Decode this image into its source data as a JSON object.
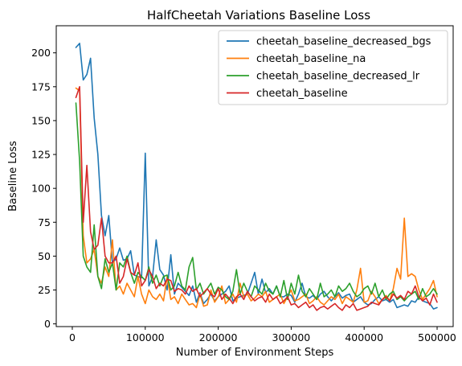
{
  "chart_data": {
    "type": "line",
    "title": "HalfCheetah Variations Baseline Loss",
    "xlabel": "Number of Environment Steps",
    "ylabel": "Baseline Loss",
    "xlim": [
      -22000,
      522000
    ],
    "ylim": [
      -2,
      220
    ],
    "xticks": [
      0,
      100000,
      200000,
      300000,
      400000,
      500000
    ],
    "yticks": [
      0,
      25,
      50,
      75,
      100,
      125,
      150,
      175,
      200
    ],
    "grid": false,
    "legend_position": "upper-right",
    "series": [
      {
        "name": "cheetah_baseline_decreased_bgs",
        "color": "#1f77b4",
        "x": [
          5000,
          10000,
          15000,
          20000,
          25000,
          30000,
          35000,
          40000,
          45000,
          50000,
          55000,
          60000,
          65000,
          70000,
          75000,
          80000,
          85000,
          90000,
          95000,
          100000,
          105000,
          110000,
          115000,
          120000,
          125000,
          130000,
          135000,
          140000,
          145000,
          150000,
          155000,
          160000,
          165000,
          170000,
          175000,
          180000,
          185000,
          190000,
          195000,
          200000,
          205000,
          210000,
          215000,
          220000,
          225000,
          230000,
          235000,
          240000,
          245000,
          250000,
          255000,
          260000,
          265000,
          270000,
          275000,
          280000,
          285000,
          290000,
          295000,
          300000,
          305000,
          310000,
          315000,
          320000,
          325000,
          330000,
          335000,
          340000,
          345000,
          350000,
          355000,
          360000,
          365000,
          370000,
          375000,
          380000,
          385000,
          390000,
          395000,
          400000,
          405000,
          410000,
          415000,
          420000,
          425000,
          430000,
          435000,
          440000,
          445000,
          450000,
          455000,
          460000,
          465000,
          470000,
          475000,
          480000,
          485000,
          490000,
          495000,
          500000
        ],
        "values": [
          204,
          207,
          180,
          184,
          196,
          152,
          125,
          80,
          65,
          80,
          45,
          48,
          56,
          47,
          48,
          54,
          36,
          35,
          34,
          126,
          28,
          35,
          62,
          40,
          36,
          25,
          51,
          22,
          30,
          27,
          24,
          21,
          28,
          16,
          23,
          15,
          18,
          22,
          17,
          20,
          22,
          24,
          28,
          17,
          19,
          20,
          21,
          22,
          30,
          38,
          22,
          33,
          23,
          26,
          22,
          28,
          20,
          20,
          22,
          21,
          16,
          22,
          30,
          20,
          19,
          21,
          18,
          22,
          24,
          20,
          17,
          20,
          23,
          19,
          21,
          22,
          16,
          18,
          20,
          16,
          14,
          15,
          18,
          20,
          17,
          18,
          16,
          18,
          12,
          13,
          14,
          13,
          17,
          16,
          20,
          17,
          16,
          15,
          11,
          12
        ]
      },
      {
        "name": "cheetah_baseline_na",
        "color": "#ff7f0e",
        "x": [
          5000,
          10000,
          15000,
          20000,
          25000,
          30000,
          35000,
          40000,
          45000,
          50000,
          55000,
          60000,
          65000,
          70000,
          75000,
          80000,
          85000,
          90000,
          95000,
          100000,
          105000,
          110000,
          115000,
          120000,
          125000,
          130000,
          135000,
          140000,
          145000,
          150000,
          155000,
          160000,
          165000,
          170000,
          175000,
          180000,
          185000,
          190000,
          195000,
          200000,
          205000,
          210000,
          215000,
          220000,
          225000,
          230000,
          235000,
          240000,
          245000,
          250000,
          255000,
          260000,
          265000,
          270000,
          275000,
          280000,
          285000,
          290000,
          295000,
          300000,
          305000,
          310000,
          315000,
          320000,
          325000,
          330000,
          335000,
          340000,
          345000,
          350000,
          355000,
          360000,
          365000,
          370000,
          375000,
          380000,
          385000,
          390000,
          395000,
          400000,
          405000,
          410000,
          415000,
          420000,
          425000,
          430000,
          435000,
          440000,
          445000,
          450000,
          455000,
          460000,
          465000,
          470000,
          475000,
          480000,
          485000,
          490000,
          495000,
          500000
        ],
        "values": [
          174,
          172,
          65,
          45,
          48,
          55,
          35,
          30,
          42,
          35,
          62,
          25,
          28,
          22,
          30,
          25,
          20,
          35,
          22,
          15,
          25,
          20,
          18,
          22,
          17,
          35,
          18,
          20,
          15,
          22,
          18,
          14,
          15,
          12,
          22,
          13,
          14,
          25,
          16,
          20,
          28,
          15,
          18,
          22,
          16,
          30,
          20,
          22,
          17,
          19,
          22,
          20,
          24,
          16,
          18,
          20,
          22,
          15,
          20,
          25,
          17,
          18,
          20,
          22,
          15,
          17,
          20,
          16,
          14,
          17,
          20,
          18,
          22,
          15,
          20,
          18,
          16,
          25,
          41,
          16,
          17,
          24,
          20,
          15,
          18,
          21,
          17,
          26,
          41,
          33,
          78,
          35,
          37,
          35,
          25,
          18,
          22,
          26,
          32,
          20
        ]
      },
      {
        "name": "cheetah_baseline_decreased_lr",
        "color": "#2ca02c",
        "x": [
          5000,
          10000,
          15000,
          20000,
          25000,
          30000,
          35000,
          40000,
          45000,
          50000,
          55000,
          60000,
          65000,
          70000,
          75000,
          80000,
          85000,
          90000,
          95000,
          100000,
          105000,
          110000,
          115000,
          120000,
          125000,
          130000,
          135000,
          140000,
          145000,
          150000,
          155000,
          160000,
          165000,
          170000,
          175000,
          180000,
          185000,
          190000,
          195000,
          200000,
          205000,
          210000,
          215000,
          220000,
          225000,
          230000,
          235000,
          240000,
          245000,
          250000,
          255000,
          260000,
          265000,
          270000,
          275000,
          280000,
          285000,
          290000,
          295000,
          300000,
          305000,
          310000,
          315000,
          320000,
          325000,
          330000,
          335000,
          340000,
          345000,
          350000,
          355000,
          360000,
          365000,
          370000,
          375000,
          380000,
          385000,
          390000,
          395000,
          400000,
          405000,
          410000,
          415000,
          420000,
          425000,
          430000,
          435000,
          440000,
          445000,
          450000,
          455000,
          460000,
          465000,
          470000,
          475000,
          480000,
          485000,
          490000,
          495000,
          500000
        ],
        "values": [
          163,
          120,
          50,
          42,
          38,
          73,
          35,
          26,
          48,
          38,
          45,
          25,
          45,
          42,
          50,
          38,
          30,
          38,
          35,
          32,
          42,
          30,
          36,
          28,
          35,
          36,
          25,
          28,
          38,
          28,
          25,
          42,
          49,
          25,
          30,
          22,
          26,
          30,
          22,
          27,
          25,
          20,
          18,
          24,
          40,
          22,
          30,
          24,
          20,
          28,
          25,
          22,
          30,
          24,
          22,
          28,
          20,
          32,
          18,
          30,
          22,
          36,
          24,
          20,
          26,
          22,
          18,
          30,
          20,
          22,
          25,
          20,
          28,
          24,
          26,
          30,
          24,
          20,
          22,
          26,
          28,
          22,
          30,
          20,
          25,
          18,
          22,
          24,
          18,
          20,
          17,
          20,
          22,
          24,
          18,
          26,
          20,
          22,
          26,
          22
        ]
      },
      {
        "name": "cheetah_baseline",
        "color": "#d62728",
        "x": [
          5000,
          10000,
          15000,
          20000,
          25000,
          30000,
          35000,
          40000,
          45000,
          50000,
          55000,
          60000,
          65000,
          70000,
          75000,
          80000,
          85000,
          90000,
          95000,
          100000,
          105000,
          110000,
          115000,
          120000,
          125000,
          130000,
          135000,
          140000,
          145000,
          150000,
          155000,
          160000,
          165000,
          170000,
          175000,
          180000,
          185000,
          190000,
          195000,
          200000,
          205000,
          210000,
          215000,
          220000,
          225000,
          230000,
          235000,
          240000,
          245000,
          250000,
          255000,
          260000,
          265000,
          270000,
          275000,
          280000,
          285000,
          290000,
          295000,
          300000,
          305000,
          310000,
          315000,
          320000,
          325000,
          330000,
          335000,
          340000,
          345000,
          350000,
          355000,
          360000,
          365000,
          370000,
          375000,
          380000,
          385000,
          390000,
          395000,
          400000,
          405000,
          410000,
          415000,
          420000,
          425000,
          430000,
          435000,
          440000,
          445000,
          450000,
          455000,
          460000,
          465000,
          470000,
          475000,
          480000,
          485000,
          490000,
          495000,
          500000
        ],
        "values": [
          167,
          175,
          75,
          117,
          68,
          55,
          58,
          78,
          50,
          45,
          45,
          50,
          30,
          35,
          48,
          38,
          36,
          45,
          28,
          32,
          40,
          35,
          26,
          30,
          28,
          33,
          32,
          24,
          26,
          25,
          22,
          28,
          24,
          26,
          20,
          23,
          26,
          22,
          20,
          26,
          18,
          22,
          19,
          15,
          20,
          22,
          18,
          24,
          20,
          17,
          19,
          20,
          16,
          22,
          18,
          20,
          15,
          17,
          20,
          14,
          15,
          12,
          14,
          16,
          12,
          14,
          10,
          12,
          13,
          11,
          13,
          15,
          12,
          10,
          14,
          12,
          15,
          10,
          11,
          12,
          13,
          16,
          15,
          14,
          18,
          20,
          17,
          22,
          19,
          21,
          18,
          24,
          22,
          28,
          20,
          17,
          19,
          14,
          22,
          16
        ]
      }
    ]
  }
}
